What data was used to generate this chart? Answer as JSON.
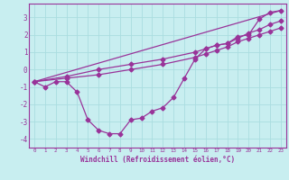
{
  "xlabel": "Windchill (Refroidissement éolien,°C)",
  "xlim": [
    -0.5,
    23.5
  ],
  "ylim": [
    -4.5,
    3.8
  ],
  "yticks": [
    -4,
    -3,
    -2,
    -1,
    0,
    1,
    2,
    3
  ],
  "xticks": [
    0,
    1,
    2,
    3,
    4,
    5,
    6,
    7,
    8,
    9,
    10,
    11,
    12,
    13,
    14,
    15,
    16,
    17,
    18,
    19,
    20,
    21,
    22,
    23
  ],
  "bg_color": "#c8eef0",
  "grid_color": "#aadde0",
  "line_color": "#993399",
  "line1_x": [
    0,
    1,
    2,
    3,
    4,
    5,
    6,
    7,
    8,
    9,
    10,
    11,
    12,
    13,
    14,
    15,
    16,
    17,
    18,
    19,
    20,
    21,
    22,
    23
  ],
  "line1_y": [
    -0.7,
    -1.0,
    -0.7,
    -0.7,
    -1.3,
    -2.9,
    -3.5,
    -3.7,
    -3.7,
    -2.9,
    -2.8,
    -2.4,
    -2.2,
    -1.6,
    -0.5,
    0.6,
    1.2,
    1.4,
    1.5,
    1.9,
    2.0,
    2.9,
    3.3,
    3.4
  ],
  "line2_x": [
    0,
    3,
    6,
    9,
    12,
    15,
    16,
    17,
    18,
    19,
    20,
    21,
    22,
    23
  ],
  "line2_y": [
    -0.7,
    -0.5,
    -0.3,
    0.0,
    0.3,
    0.7,
    0.9,
    1.1,
    1.3,
    1.6,
    1.8,
    2.0,
    2.2,
    2.4
  ],
  "line3_x": [
    0,
    3,
    6,
    9,
    12,
    15,
    16,
    17,
    18,
    19,
    20,
    21,
    22,
    23
  ],
  "line3_y": [
    -0.7,
    -0.4,
    0.0,
    0.3,
    0.6,
    1.0,
    1.2,
    1.4,
    1.5,
    1.8,
    2.1,
    2.3,
    2.6,
    2.8
  ],
  "line4_x": [
    0,
    23
  ],
  "line4_y": [
    -0.7,
    3.4
  ]
}
